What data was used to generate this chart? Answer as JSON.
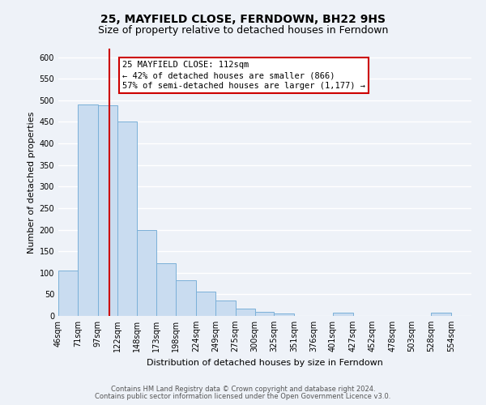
{
  "title": "25, MAYFIELD CLOSE, FERNDOWN, BH22 9HS",
  "subtitle": "Size of property relative to detached houses in Ferndown",
  "xlabel": "Distribution of detached houses by size in Ferndown",
  "ylabel": "Number of detached properties",
  "footer_line1": "Contains HM Land Registry data © Crown copyright and database right 2024.",
  "footer_line2": "Contains public sector information licensed under the Open Government Licence v3.0.",
  "bin_labels": [
    "46sqm",
    "71sqm",
    "97sqm",
    "122sqm",
    "148sqm",
    "173sqm",
    "198sqm",
    "224sqm",
    "249sqm",
    "275sqm",
    "300sqm",
    "325sqm",
    "351sqm",
    "376sqm",
    "401sqm",
    "427sqm",
    "452sqm",
    "478sqm",
    "503sqm",
    "528sqm",
    "554sqm"
  ],
  "bin_edges": [
    46,
    71,
    97,
    122,
    148,
    173,
    198,
    224,
    249,
    275,
    300,
    325,
    351,
    376,
    401,
    427,
    452,
    478,
    503,
    528,
    554,
    580
  ],
  "bar_heights": [
    105,
    490,
    488,
    450,
    200,
    123,
    82,
    57,
    35,
    16,
    10,
    5,
    0,
    0,
    8,
    0,
    0,
    0,
    0,
    7,
    0
  ],
  "bar_color": "#c9dcf0",
  "bar_edge_color": "#7ab0d8",
  "property_size": 112,
  "vline_color": "#cc0000",
  "annotation_text_line1": "25 MAYFIELD CLOSE: 112sqm",
  "annotation_text_line2": "← 42% of detached houses are smaller (866)",
  "annotation_text_line3": "57% of semi-detached houses are larger (1,177) →",
  "annotation_box_facecolor": "#ffffff",
  "annotation_box_edgecolor": "#cc0000",
  "ylim": [
    0,
    620
  ],
  "yticks": [
    0,
    50,
    100,
    150,
    200,
    250,
    300,
    350,
    400,
    450,
    500,
    550,
    600
  ],
  "background_color": "#eef2f8",
  "grid_color": "#ffffff",
  "title_fontsize": 10,
  "subtitle_fontsize": 9,
  "axis_label_fontsize": 8,
  "tick_fontsize": 7,
  "annot_fontsize": 7.5,
  "footer_fontsize": 6
}
